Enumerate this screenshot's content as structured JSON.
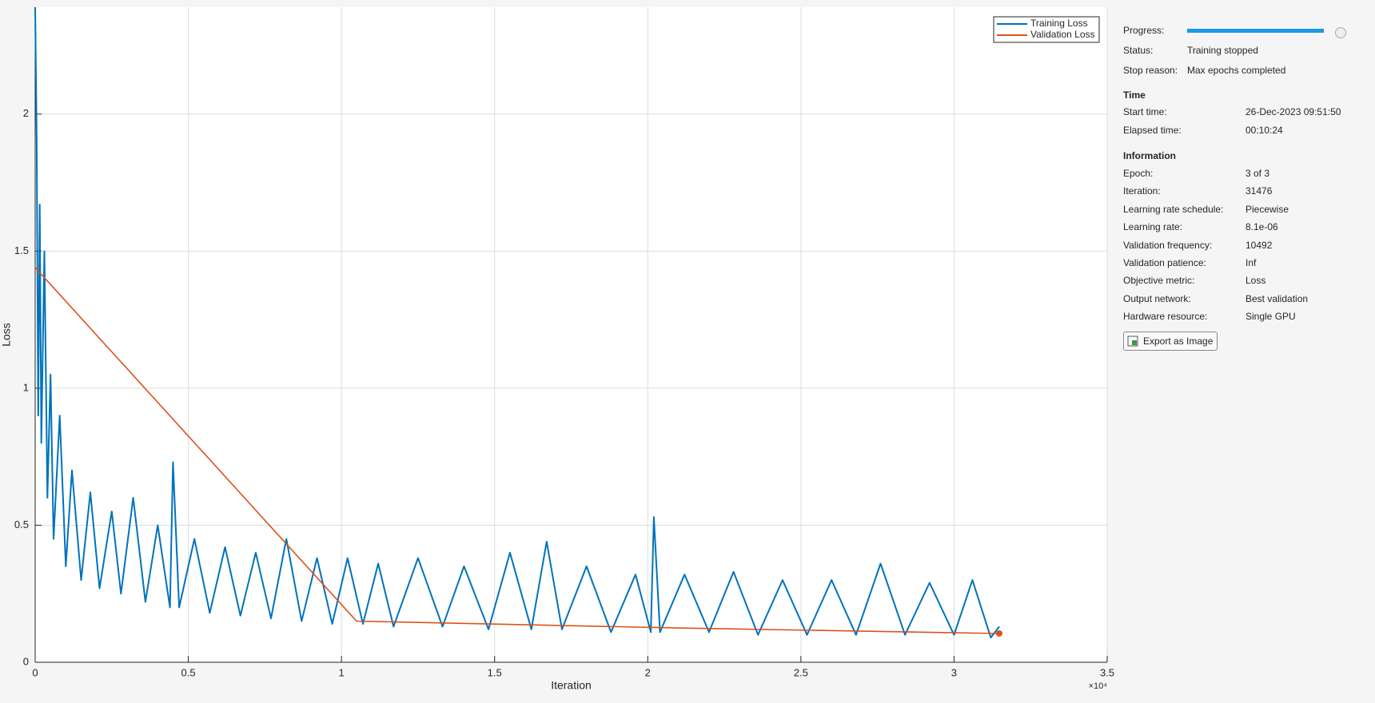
{
  "chart_data": {
    "type": "line",
    "x_label": "Iteration",
    "y_label": "Loss",
    "x_exponent_label": "×10⁴",
    "xlim": [
      0,
      35000
    ],
    "ylim": [
      0,
      2.39
    ],
    "xticks": [
      0,
      {
        "value": 5000,
        "label": "0.5"
      },
      {
        "value": 10000,
        "label": "1"
      },
      {
        "value": 15000,
        "label": "1.5"
      },
      {
        "value": 20000,
        "label": "2"
      },
      {
        "value": 25000,
        "label": "2.5"
      },
      {
        "value": 30000,
        "label": "3"
      },
      {
        "value": 35000,
        "label": "3.5"
      }
    ],
    "yticks": [
      0,
      0.5,
      1,
      1.5,
      2
    ],
    "grid": true,
    "legend": "top-right",
    "series": [
      {
        "name": "Training Loss",
        "color": "#0072bd",
        "x": [
          0,
          50,
          100,
          150,
          200,
          300,
          400,
          500,
          600,
          800,
          1000,
          1200,
          1500,
          1800,
          2100,
          2500,
          2800,
          3200,
          3600,
          4000,
          4400,
          4500,
          4700,
          5200,
          5700,
          6200,
          6700,
          7200,
          7700,
          8200,
          8700,
          9200,
          9700,
          10200,
          10700,
          11200,
          11700,
          12500,
          13300,
          14000,
          14800,
          15500,
          16200,
          16700,
          17200,
          18000,
          18800,
          19600,
          20100,
          20200,
          20400,
          21200,
          22000,
          22800,
          23600,
          24400,
          25200,
          26000,
          26800,
          27600,
          28400,
          29200,
          30000,
          30600,
          31200,
          31476
        ],
        "values": [
          2.39,
          1.9,
          0.9,
          1.67,
          0.8,
          1.5,
          0.6,
          1.05,
          0.45,
          0.9,
          0.35,
          0.7,
          0.3,
          0.62,
          0.27,
          0.55,
          0.25,
          0.6,
          0.22,
          0.5,
          0.2,
          0.73,
          0.2,
          0.45,
          0.18,
          0.42,
          0.17,
          0.4,
          0.16,
          0.45,
          0.15,
          0.38,
          0.14,
          0.38,
          0.14,
          0.36,
          0.13,
          0.38,
          0.13,
          0.35,
          0.12,
          0.4,
          0.12,
          0.44,
          0.12,
          0.35,
          0.11,
          0.32,
          0.11,
          0.53,
          0.11,
          0.32,
          0.11,
          0.33,
          0.1,
          0.3,
          0.1,
          0.3,
          0.1,
          0.36,
          0.1,
          0.29,
          0.1,
          0.3,
          0.09,
          0.13
        ]
      },
      {
        "name": "Validation Loss",
        "color": "#d95319",
        "x": [
          0,
          10492,
          20984,
          31476
        ],
        "values": [
          1.44,
          0.15,
          0.125,
          0.105
        ]
      }
    ]
  },
  "panel": {
    "status": [
      {
        "label": "Progress:"
      },
      {
        "label": "Status:",
        "value": "Training stopped"
      },
      {
        "label": "Stop reason:",
        "value": "Max epochs completed"
      }
    ],
    "time_heading": "Time",
    "time": [
      {
        "label": "Start time:",
        "value": "26-Dec-2023 09:51:50"
      },
      {
        "label": "Elapsed time:",
        "value": "00:10:24"
      }
    ],
    "info_heading": "Information",
    "info": [
      {
        "label": "Epoch:",
        "value": "3 of 3"
      },
      {
        "label": "Iteration:",
        "value": "31476"
      },
      {
        "label": "Learning rate schedule:",
        "value": "Piecewise"
      },
      {
        "label": "Learning rate:",
        "value": "8.1e-06"
      },
      {
        "label": "Validation frequency:",
        "value": "10492"
      },
      {
        "label": "Validation patience:",
        "value": "Inf"
      },
      {
        "label": "Objective metric:",
        "value": "Loss"
      },
      {
        "label": "Output network:",
        "value": "Best validation"
      },
      {
        "label": "Hardware resource:",
        "value": "Single GPU"
      }
    ],
    "export_button": "Export as Image"
  }
}
